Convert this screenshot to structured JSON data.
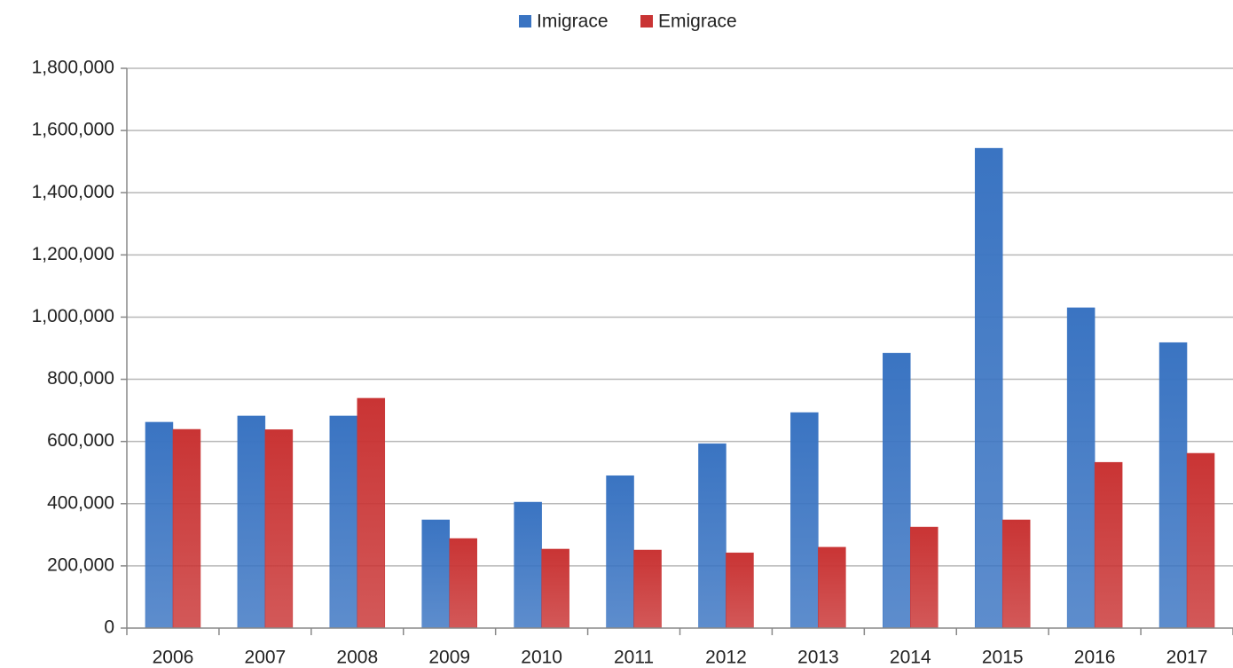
{
  "chart_data": {
    "type": "bar",
    "categories": [
      "2006",
      "2007",
      "2008",
      "2009",
      "2010",
      "2011",
      "2012",
      "2013",
      "2014",
      "2015",
      "2016",
      "2017"
    ],
    "series": [
      {
        "name": "Imigrace",
        "color": "#3a74c2",
        "values": [
          662000,
          682000,
          682000,
          348000,
          405000,
          490000,
          593000,
          693000,
          884000,
          1543000,
          1030000,
          918000
        ]
      },
      {
        "name": "Emigrace",
        "color": "#c93434",
        "values": [
          639000,
          638000,
          739000,
          288000,
          254000,
          251000,
          242000,
          260000,
          325000,
          348000,
          533000,
          562000
        ]
      }
    ],
    "ylim": [
      0,
      1800000
    ],
    "yticks": [
      0,
      {
        "value": 200000,
        "label": "200,000"
      },
      {
        "value": 400000,
        "label": "400,000"
      },
      {
        "value": 600000,
        "label": "600,000"
      },
      {
        "value": 800000,
        "label": "800,000"
      },
      {
        "value": 1000000,
        "label": "1,000,000"
      },
      {
        "value": 1200000,
        "label": "1,200,000"
      },
      {
        "value": 1400000,
        "label": "1,400,000"
      },
      {
        "value": 1600000,
        "label": "1,600,000"
      },
      {
        "value": 1800000,
        "label": "1,800,000"
      }
    ],
    "grid": true,
    "legend": "top"
  }
}
